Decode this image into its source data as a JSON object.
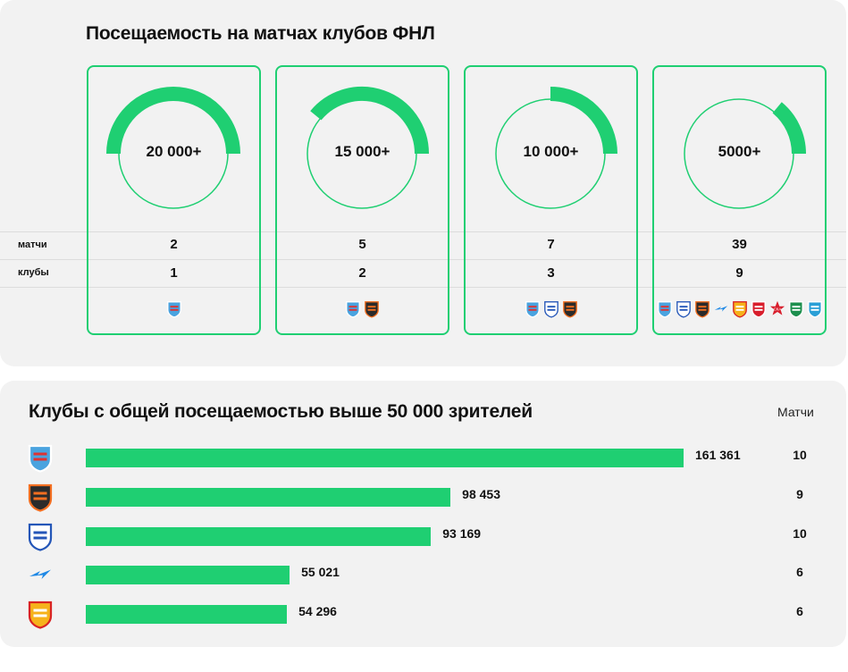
{
  "top": {
    "title": "Посещаемость на матчах клубов ФНЛ",
    "row_labels": {
      "matches": "матчи",
      "clubs": "клубы"
    },
    "columns": [
      {
        "label": "20 000+",
        "matches": "2",
        "clubs": "1",
        "fill_fraction": 0.5,
        "logos": [
          "baltika"
        ]
      },
      {
        "label": "15 000+",
        "matches": "5",
        "clubs": "2",
        "fill_fraction": 0.39,
        "logos": [
          "baltika",
          "ural"
        ]
      },
      {
        "label": "10 000+",
        "matches": "7",
        "clubs": "3",
        "fill_fraction": 0.25,
        "logos": [
          "baltika",
          "fakel",
          "ural"
        ]
      },
      {
        "label": "5000+",
        "matches": "39",
        "clubs": "9",
        "fill_fraction": 0.11,
        "logos": [
          "baltika",
          "fakel",
          "ural",
          "chernomorets",
          "arsenal",
          "spartak",
          "ska",
          "fakel-green",
          "rotor"
        ]
      }
    ]
  },
  "chart_data": {
    "type": "bar",
    "title": "Клубы с общей посещаемостью выше 50 000 зрителей",
    "matches_header": "Матчи",
    "categories": [
      "Балтика",
      "Урал",
      "Факел",
      "Черноморец",
      "Арсенал"
    ],
    "values": [
      161361,
      98453,
      93169,
      55021,
      54296
    ],
    "value_labels": [
      "161 361",
      "98 453",
      "93 169",
      "55 021",
      "54 296"
    ],
    "matches": [
      "10",
      "9",
      "10",
      "6",
      "6"
    ],
    "xlim": [
      0,
      161361
    ]
  },
  "colors": {
    "accent": "#1fcf72",
    "panel": "#f2f2f2"
  }
}
